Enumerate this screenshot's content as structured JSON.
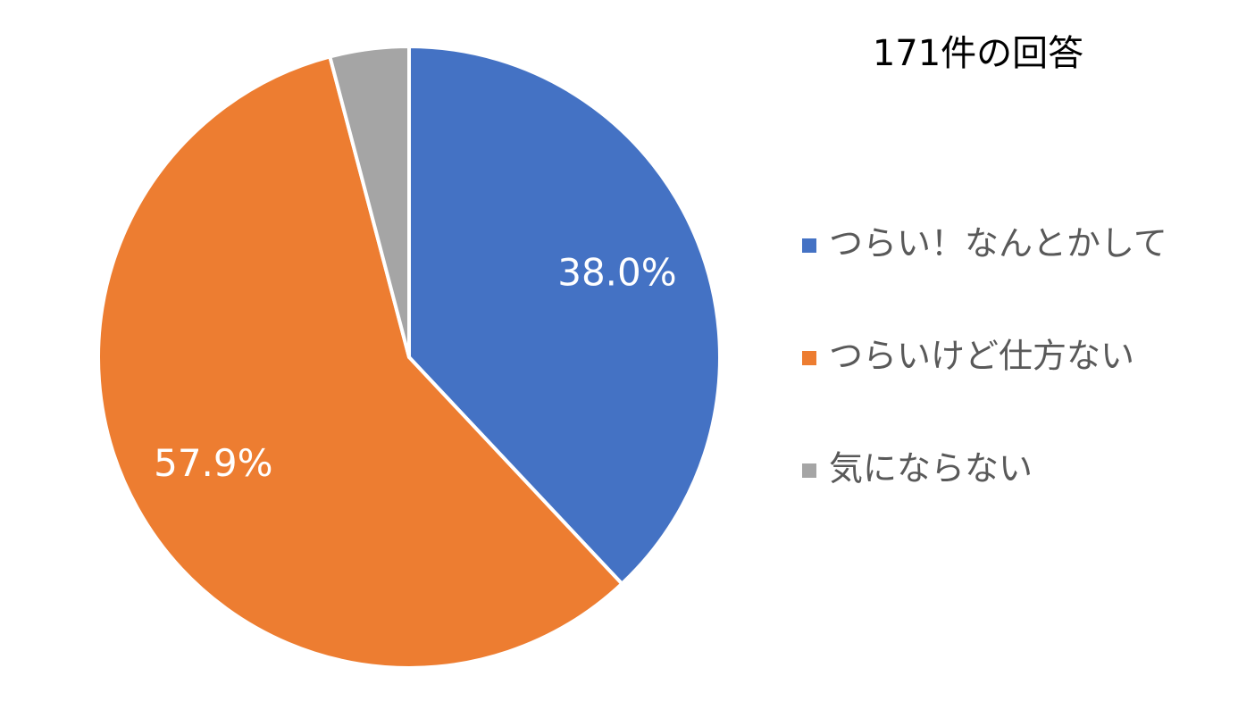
{
  "chart_data": {
    "type": "pie",
    "title": "171件の回答",
    "categories": [
      "つらい！なんとかして",
      "つらいけど仕方ない",
      "気にならない"
    ],
    "values": [
      38.0,
      57.9,
      4.1
    ],
    "value_labels": [
      "38.0%",
      "57.9%",
      null
    ],
    "colors": [
      "#4472c4",
      "#ed7d31",
      "#a5a5a5"
    ],
    "legend": "right"
  }
}
